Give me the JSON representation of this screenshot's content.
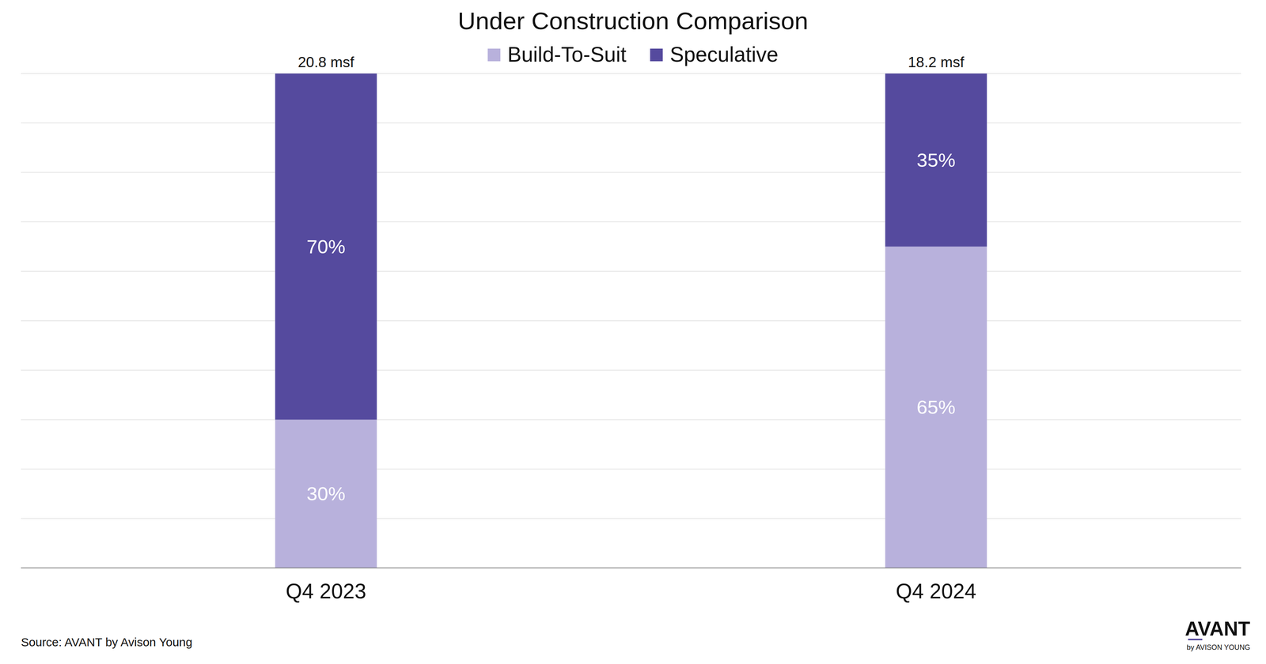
{
  "chart_data": {
    "type": "bar",
    "title": "Under Construction Comparison",
    "categories": [
      "Q4 2023",
      "Q4 2024"
    ],
    "series": [
      {
        "name": "Build-To-Suit",
        "color": "#b8b1dc",
        "values": [
          30,
          65
        ],
        "value_labels": [
          "30%",
          "65%"
        ]
      },
      {
        "name": "Speculative",
        "color": "#554a9e",
        "values": [
          70,
          35
        ],
        "value_labels": [
          "70%",
          "35%"
        ]
      }
    ],
    "annotations": [
      "20.8 msf",
      "18.2 msf"
    ],
    "ylim": [
      0,
      100
    ],
    "yticks": [
      0,
      10,
      20,
      30,
      40,
      50,
      60,
      70,
      80,
      90,
      100
    ],
    "grid": true,
    "stacked": true,
    "data_labels": true,
    "legend": "top",
    "tick_labels": "x"
  },
  "source": "Source: AVANT by Avison Young",
  "logo": {
    "main": "AVANT",
    "sub": "by AVISON YOUNG"
  }
}
